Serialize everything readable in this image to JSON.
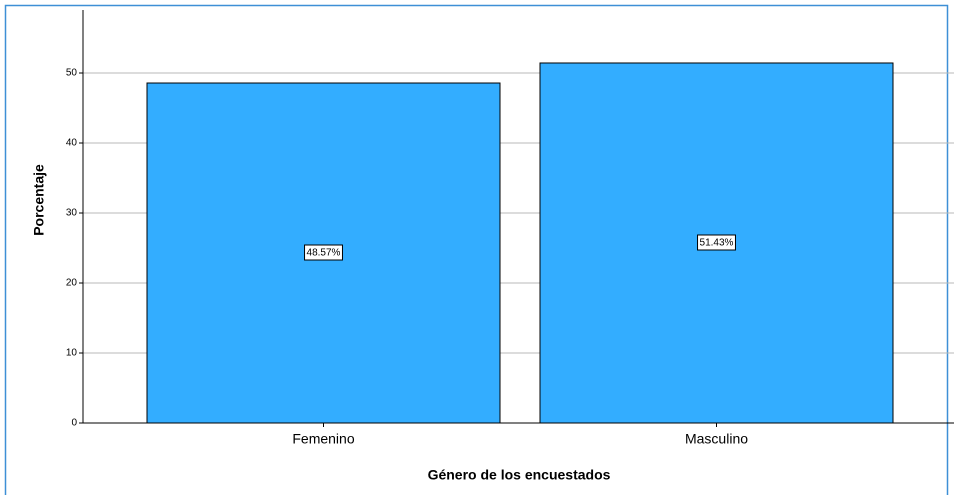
{
  "chart_data": {
    "type": "bar",
    "categories": [
      "Femenino",
      "Masculino"
    ],
    "values": [
      48.57,
      51.43
    ],
    "value_labels": [
      "48.57%",
      "51.43%"
    ],
    "color": "#33adff",
    "xlabel": "Género de los encuestados",
    "ylabel": "Porcentaje",
    "ylim": [
      0,
      59
    ],
    "yticks": [
      0,
      10,
      20,
      30,
      40,
      50
    ],
    "grid": true
  }
}
